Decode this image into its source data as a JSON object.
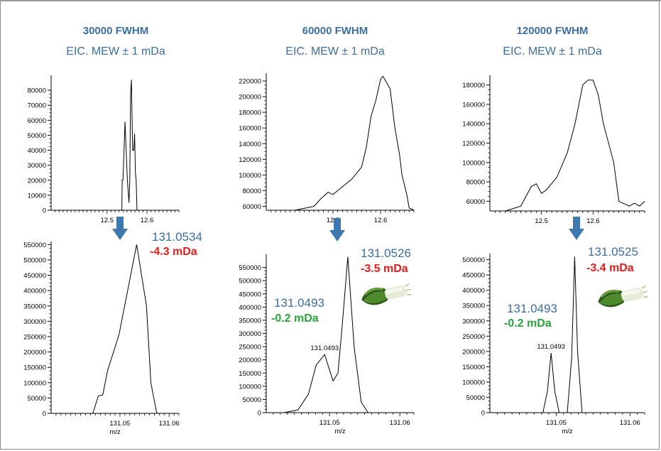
{
  "colors": {
    "title_blue": "#3c6e9f",
    "red": "#e41d1d",
    "green": "#2aa53a",
    "arrow_blue": "#3e78b0"
  },
  "panels": [
    {
      "title": "30000 FWHM",
      "subtitle": "EIC. MEW ± 1 mDa",
      "ann_mass_main": "131.0534",
      "ann_delta_main": "-4.3 mDa",
      "ann_mass_second": "",
      "ann_delta_second": "",
      "leek": false
    },
    {
      "title": "60000 FWHM",
      "subtitle": "EIC. MEW ± 1 mDa",
      "ann_mass_main": "131.0526",
      "ann_delta_main": "-3.5 mDa",
      "ann_mass_second": "131.0493",
      "ann_delta_second": "-0.2 mDa",
      "leek": true
    },
    {
      "title": "120000 FWHM",
      "subtitle": "EIC. MEW ± 1 mDa",
      "ann_mass_main": "131.0525",
      "ann_delta_main": "-3.4 mDa",
      "ann_mass_second": "131.0493",
      "ann_delta_second": "-0.2 mDa",
      "leek": true
    }
  ],
  "chart_data": [
    {
      "type": "line",
      "panel": 0,
      "kind": "chromatogram",
      "xlim": [
        12.36,
        12.68
      ],
      "ylim": [
        0,
        90000
      ],
      "xticks": [
        "12.5",
        "12.6"
      ],
      "xtick_values": [
        12.5,
        12.6
      ],
      "yticks": [
        "0",
        "10000",
        "20000",
        "30000",
        "40000",
        "50000",
        "60000",
        "70000",
        "80000"
      ],
      "ytick_values": [
        0,
        10000,
        20000,
        30000,
        40000,
        50000,
        60000,
        70000,
        80000
      ],
      "x": [
        12.36,
        12.537,
        12.538,
        12.54,
        12.545,
        12.551,
        12.555,
        12.557,
        12.559,
        12.561,
        12.564,
        12.567,
        12.569,
        12.571,
        12.573,
        12.575,
        12.578,
        12.58,
        12.68
      ],
      "y": [
        0,
        0,
        20000,
        20000,
        59000,
        20000,
        5000,
        20000,
        77000,
        87000,
        40000,
        40000,
        51000,
        25000,
        20000,
        0,
        0,
        0,
        0
      ]
    },
    {
      "type": "line",
      "panel": 0,
      "kind": "spectrum",
      "xlim": [
        131.036,
        131.062
      ],
      "ylim": [
        0,
        560000
      ],
      "xlabel": "m/z",
      "xticks": [
        "131.05",
        "131.06"
      ],
      "xtick_values": [
        131.05,
        131.06
      ],
      "yticks": [
        "0",
        "50000",
        "100000",
        "150000",
        "200000",
        "250000",
        "300000",
        "350000",
        "400000",
        "450000",
        "500000",
        "550000"
      ],
      "ytick_values": [
        0,
        50000,
        100000,
        150000,
        200000,
        250000,
        300000,
        350000,
        400000,
        450000,
        500000,
        550000
      ],
      "x": [
        131.036,
        131.0445,
        131.0456,
        131.0465,
        131.0475,
        131.0498,
        131.0534,
        131.0554,
        131.0563,
        131.0575,
        131.062
      ],
      "y": [
        0,
        0,
        57000,
        60000,
        140000,
        255000,
        550000,
        350000,
        100000,
        0,
        0
      ]
    },
    {
      "type": "line",
      "panel": 1,
      "kind": "chromatogram",
      "xlim": [
        12.36,
        12.67
      ],
      "ylim": [
        55000,
        230000
      ],
      "xticks": [
        "12.5",
        "12.6"
      ],
      "xtick_values": [
        12.5,
        12.6
      ],
      "yticks": [
        "60000",
        "80000",
        "100000",
        "120000",
        "140000",
        "160000",
        "180000",
        "200000",
        "220000"
      ],
      "ytick_values": [
        60000,
        80000,
        100000,
        120000,
        140000,
        160000,
        180000,
        200000,
        220000
      ],
      "x": [
        12.36,
        12.42,
        12.46,
        12.475,
        12.49,
        12.5,
        12.52,
        12.54,
        12.56,
        12.57,
        12.58,
        12.59,
        12.6,
        12.605,
        12.62,
        12.63,
        12.64,
        12.645,
        12.655,
        12.66,
        12.67
      ],
      "y": [
        55000,
        55000,
        60000,
        70000,
        78000,
        75000,
        85000,
        95000,
        110000,
        135000,
        175000,
        195000,
        222000,
        226000,
        210000,
        160000,
        125000,
        100000,
        75000,
        58000,
        55000
      ]
    },
    {
      "type": "line",
      "panel": 1,
      "kind": "spectrum",
      "xlim": [
        131.041,
        131.062
      ],
      "ylim": [
        0,
        600000
      ],
      "xlabel": "m/z",
      "xticks": [
        "131.05",
        "131.06"
      ],
      "xtick_values": [
        131.05,
        131.06
      ],
      "yticks": [
        "0",
        "50000",
        "100000",
        "150000",
        "200000",
        "250000",
        "300000",
        "350000",
        "400000",
        "450000",
        "500000",
        "550000"
      ],
      "ytick_values": [
        0,
        50000,
        100000,
        150000,
        200000,
        250000,
        300000,
        350000,
        400000,
        450000,
        500000,
        550000
      ],
      "peak_label": "131.0493",
      "peak_label_x": 131.0493,
      "peak_label_y": 220000,
      "x": [
        131.041,
        131.0435,
        131.0455,
        131.047,
        131.0481,
        131.0493,
        131.0505,
        131.0512,
        131.0518,
        131.0526,
        131.0535,
        131.0545,
        131.0555,
        131.062
      ],
      "y": [
        0,
        0,
        10000,
        70000,
        180000,
        220000,
        120000,
        150000,
        330000,
        590000,
        250000,
        40000,
        0,
        0
      ]
    },
    {
      "type": "line",
      "panel": 2,
      "kind": "chromatogram",
      "xlim": [
        12.4,
        12.7
      ],
      "ylim": [
        50000,
        190000
      ],
      "xticks": [
        "12.5",
        "12.6"
      ],
      "xtick_values": [
        12.5,
        12.6
      ],
      "yticks": [
        "60000",
        "80000",
        "100000",
        "120000",
        "140000",
        "160000",
        "180000"
      ],
      "ytick_values": [
        60000,
        80000,
        100000,
        120000,
        140000,
        160000,
        180000
      ],
      "x": [
        12.4,
        12.43,
        12.46,
        12.48,
        12.49,
        12.5,
        12.51,
        12.53,
        12.55,
        12.565,
        12.58,
        12.59,
        12.6,
        12.61,
        12.62,
        12.64,
        12.65,
        12.67,
        12.68,
        12.69,
        12.7
      ],
      "y": [
        50000,
        50000,
        55000,
        75000,
        78000,
        68000,
        72000,
        85000,
        110000,
        140000,
        180000,
        185000,
        185000,
        170000,
        140000,
        100000,
        60000,
        55000,
        58000,
        55000,
        60000
      ]
    },
    {
      "type": "line",
      "panel": 2,
      "kind": "spectrum",
      "xlim": [
        131.041,
        131.062
      ],
      "ylim": [
        0,
        520000
      ],
      "xlabel": "m/z",
      "xticks": [
        "131.05",
        "131.06"
      ],
      "xtick_values": [
        131.05,
        131.06
      ],
      "yticks": [
        "0",
        "50000",
        "100000",
        "150000",
        "200000",
        "250000",
        "300000",
        "350000",
        "400000",
        "450000",
        "500000"
      ],
      "ytick_values": [
        0,
        50000,
        100000,
        150000,
        200000,
        250000,
        300000,
        350000,
        400000,
        450000,
        500000
      ],
      "peak_label": "131.0493",
      "peak_label_x": 131.0493,
      "peak_label_y": 195000,
      "x": [
        131.041,
        131.0482,
        131.0488,
        131.0493,
        131.0498,
        131.0504,
        131.0515,
        131.0521,
        131.0525,
        131.0529,
        131.0535,
        131.062
      ],
      "y": [
        0,
        0,
        70000,
        195000,
        70000,
        0,
        0,
        180000,
        510000,
        200000,
        0,
        0
      ]
    }
  ]
}
